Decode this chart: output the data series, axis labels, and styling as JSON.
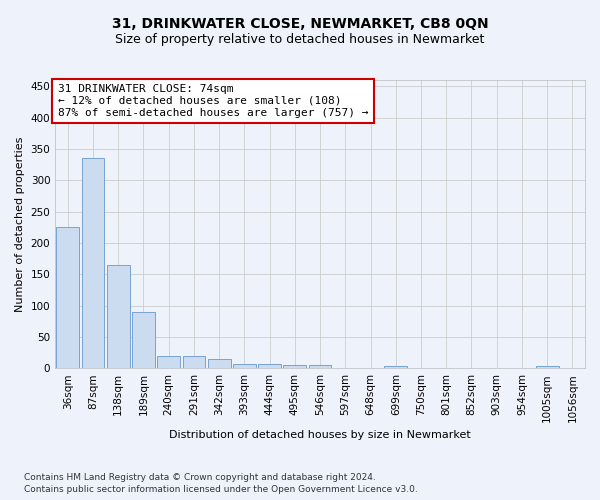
{
  "title": "31, DRINKWATER CLOSE, NEWMARKET, CB8 0QN",
  "subtitle": "Size of property relative to detached houses in Newmarket",
  "xlabel": "Distribution of detached houses by size in Newmarket",
  "ylabel": "Number of detached properties",
  "categories": [
    "36sqm",
    "87sqm",
    "138sqm",
    "189sqm",
    "240sqm",
    "291sqm",
    "342sqm",
    "393sqm",
    "444sqm",
    "495sqm",
    "546sqm",
    "597sqm",
    "648sqm",
    "699sqm",
    "750sqm",
    "801sqm",
    "852sqm",
    "903sqm",
    "954sqm",
    "1005sqm",
    "1056sqm"
  ],
  "values": [
    225,
    335,
    165,
    90,
    20,
    20,
    14,
    6,
    6,
    5,
    5,
    0,
    0,
    4,
    0,
    0,
    0,
    0,
    0,
    4,
    0
  ],
  "bar_color": "#ccdcf0",
  "bar_edge_color": "#6699cc",
  "annotation_line1": "31 DRINKWATER CLOSE: 74sqm",
  "annotation_line2": "← 12% of detached houses are smaller (108)",
  "annotation_line3": "87% of semi-detached houses are larger (757) →",
  "annotation_box_facecolor": "#ffffff",
  "annotation_box_edgecolor": "#cc0000",
  "grid_color": "#cccccc",
  "background_color": "#eef2fb",
  "ylim": [
    0,
    460
  ],
  "yticks": [
    0,
    50,
    100,
    150,
    200,
    250,
    300,
    350,
    400,
    450
  ],
  "footer_line1": "Contains HM Land Registry data © Crown copyright and database right 2024.",
  "footer_line2": "Contains public sector information licensed under the Open Government Licence v3.0.",
  "title_fontsize": 10,
  "subtitle_fontsize": 9,
  "xlabel_fontsize": 8,
  "ylabel_fontsize": 8,
  "tick_fontsize": 7.5,
  "annotation_fontsize": 8,
  "footer_fontsize": 6.5
}
